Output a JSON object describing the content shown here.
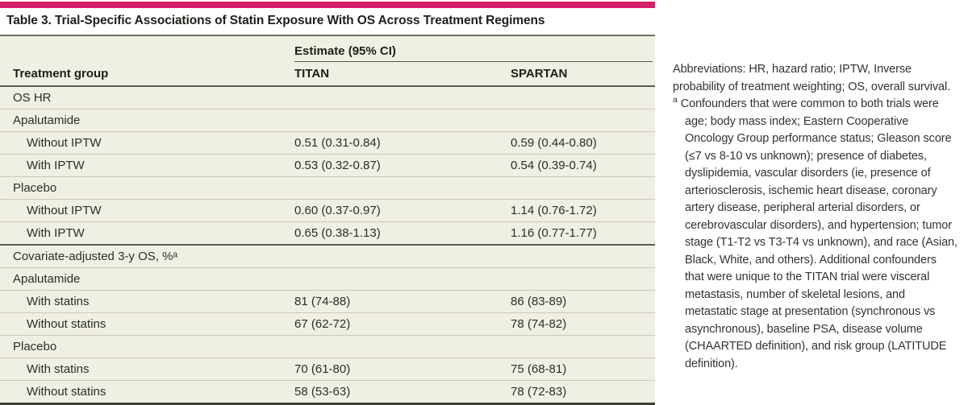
{
  "title": "Table 3. Trial-Specific Associations of Statin Exposure With OS Across Treatment Regimens",
  "colors": {
    "accent_bar": "#d71e6b",
    "table_bg": "#f0efe3",
    "rule_light": "#c9c8b9",
    "rule_dark": "#5c5b51"
  },
  "table": {
    "span_header": "Estimate (95% CI)",
    "columns": {
      "group": "Treatment group",
      "titan": "TITAN",
      "spartan": "SPARTAN"
    },
    "rows": [
      {
        "type": "section",
        "label": "OS HR",
        "titan": "",
        "spartan": ""
      },
      {
        "type": "group",
        "label": "Apalutamide",
        "titan": "",
        "spartan": ""
      },
      {
        "type": "data",
        "label": "Without IPTW",
        "titan": "0.51 (0.31-0.84)",
        "spartan": "0.59 (0.44-0.80)"
      },
      {
        "type": "data",
        "label": "With IPTW",
        "titan": "0.53 (0.32-0.87)",
        "spartan": "0.54 (0.39-0.74)"
      },
      {
        "type": "group",
        "label": "Placebo",
        "titan": "",
        "spartan": ""
      },
      {
        "type": "data",
        "label": "Without IPTW",
        "titan": "0.60 (0.37-0.97)",
        "spartan": "1.14 (0.76-1.72)"
      },
      {
        "type": "data",
        "label": "With IPTW",
        "titan": "0.65 (0.38-1.13)",
        "spartan": "1.16 (0.77-1.77)"
      },
      {
        "type": "section",
        "label": "Covariate-adjusted 3-y OS, %ᵃ",
        "titan": "",
        "spartan": ""
      },
      {
        "type": "group",
        "label": "Apalutamide",
        "titan": "",
        "spartan": ""
      },
      {
        "type": "data",
        "label": "With statins",
        "titan": "81 (74-88)",
        "spartan": "86 (83-89)"
      },
      {
        "type": "data",
        "label": "Without statins",
        "titan": "67 (62-72)",
        "spartan": "78 (74-82)"
      },
      {
        "type": "group",
        "label": "Placebo",
        "titan": "",
        "spartan": ""
      },
      {
        "type": "data",
        "label": "With statins",
        "titan": "70 (61-80)",
        "spartan": "75 (68-81)"
      },
      {
        "type": "data",
        "label": "Without statins",
        "titan": "58 (53-63)",
        "spartan": "78 (72-83)"
      }
    ]
  },
  "notes": {
    "abbreviations": "Abbreviations: HR, hazard ratio; IPTW, Inverse probability of treatment weighting; OS, overall survival.",
    "footnote_marker": "a",
    "footnote": "Confounders that were common to both trials were age; body mass index; Eastern Cooperative Oncology Group performance status; Gleason score (≤7 vs 8-10 vs unknown); presence of diabetes, dyslipidemia, vas­cular disorders (ie, presence of arteriosclerosis, ische­mic heart disease, coronary artery disease, peripheral arterial disorders, or cerebrovascular disorders), and hypertension; tumor stage (T1-T2 vs T3-T4 vs unknown), and race (Asian, Black, White, and others). Additional confounders that were unique to the TITAN trial were visceral metastasis, number of skeletal le­sions, and metastatic stage at presentation (synchro­nous vs asynchronous), baseline PSA, disease volume (CHAARTED definition), and risk group (LATITUDE definition)."
  }
}
